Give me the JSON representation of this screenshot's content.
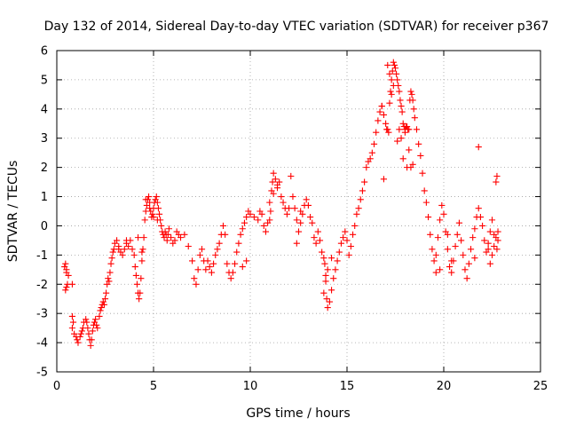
{
  "chart_data": {
    "type": "scatter",
    "title": "Day 132 of 2014, Sidereal Day-to-day VTEC variation (SDTVAR) for receiver p367",
    "xlabel": "GPS time / hours",
    "ylabel": "SDTVAR / TECUs",
    "xlim": [
      0,
      25
    ],
    "ylim": [
      -5,
      6
    ],
    "xticks": [
      0,
      5,
      10,
      15,
      20,
      25
    ],
    "yticks": [
      -5,
      -4,
      -3,
      -2,
      -1,
      0,
      1,
      2,
      3,
      4,
      5,
      6
    ],
    "grid": true,
    "marker": "+",
    "color": "#ff0000",
    "series": [
      {
        "name": "SDTVAR",
        "x": [
          0.4,
          0.45,
          0.5,
          0.5,
          0.55,
          0.45,
          0.5,
          0.6,
          0.8,
          0.8,
          0.85,
          0.8,
          0.9,
          1.0,
          1.05,
          1.1,
          1.2,
          1.25,
          1.3,
          1.35,
          1.4,
          1.5,
          1.55,
          1.6,
          1.65,
          1.7,
          1.75,
          1.8,
          1.85,
          1.9,
          1.95,
          2.0,
          2.05,
          2.1,
          2.2,
          2.25,
          2.3,
          2.35,
          2.4,
          2.45,
          2.5,
          2.55,
          2.6,
          2.65,
          2.7,
          2.75,
          2.8,
          2.85,
          2.9,
          2.95,
          3.0,
          3.1,
          3.2,
          3.3,
          3.4,
          3.5,
          3.6,
          3.7,
          3.8,
          3.9,
          4.0,
          4.05,
          4.1,
          4.15,
          4.2,
          4.25,
          4.3,
          4.35,
          4.4,
          4.45,
          4.5,
          4.55,
          4.6,
          4.65,
          4.7,
          4.75,
          4.8,
          4.85,
          4.9,
          4.95,
          5.0,
          5.05,
          5.1,
          5.15,
          5.2,
          5.25,
          5.3,
          5.35,
          5.4,
          5.45,
          5.5,
          5.55,
          5.6,
          5.65,
          5.7,
          5.75,
          5.8,
          5.9,
          6.0,
          6.1,
          6.2,
          6.3,
          6.4,
          6.6,
          6.8,
          7.0,
          7.1,
          7.2,
          7.3,
          7.4,
          7.5,
          7.6,
          7.7,
          7.8,
          7.9,
          8.0,
          8.1,
          8.2,
          8.3,
          8.4,
          8.5,
          8.6,
          8.7,
          8.8,
          8.9,
          9.0,
          9.1,
          9.2,
          9.3,
          9.4,
          9.5,
          9.6,
          9.7,
          9.8,
          9.9,
          10.0,
          10.2,
          10.4,
          10.5,
          10.6,
          10.7,
          10.8,
          10.9,
          11.0,
          11.05,
          11.1,
          11.15,
          11.2,
          11.3,
          11.4,
          11.5,
          11.6,
          11.7,
          11.8,
          11.9,
          12.0,
          12.1,
          12.2,
          12.3,
          12.4,
          12.5,
          12.6,
          12.7,
          12.8,
          12.9,
          13.0,
          13.1,
          13.2,
          13.3,
          13.4,
          13.5,
          13.6,
          13.7,
          13.8,
          13.85,
          13.9,
          13.95,
          14.0,
          14.1,
          14.2,
          14.3,
          14.4,
          14.5,
          14.6,
          14.7,
          14.8,
          14.9,
          15.0,
          15.1,
          15.2,
          15.3,
          15.4,
          15.5,
          15.6,
          15.7,
          15.8,
          15.9,
          16.0,
          16.1,
          16.2,
          16.3,
          16.4,
          16.5,
          16.6,
          16.7,
          16.8,
          16.9,
          17.0,
          17.05,
          17.1,
          17.15,
          17.2,
          17.25,
          17.3,
          17.35,
          17.4,
          17.45,
          17.5,
          17.55,
          17.6,
          17.65,
          17.7,
          17.75,
          17.8,
          17.85,
          17.9,
          17.95,
          18.0,
          18.05,
          18.1,
          18.15,
          18.2,
          18.25,
          18.3,
          18.35,
          18.4,
          18.45,
          18.5,
          18.6,
          18.7,
          18.8,
          18.9,
          19.0,
          19.1,
          19.2,
          19.3,
          19.4,
          19.5,
          19.6,
          19.7,
          19.8,
          19.9,
          20.0,
          20.1,
          20.2,
          20.3,
          20.4,
          20.5,
          20.6,
          20.7,
          20.8,
          20.9,
          21.0,
          21.1,
          21.2,
          21.3,
          21.4,
          21.5,
          21.6,
          21.7,
          21.8,
          21.9,
          22.0,
          22.1,
          22.2,
          22.3,
          22.4,
          22.5,
          22.6,
          22.7,
          22.75,
          22.75,
          22.8,
          22.8,
          22.7,
          22.6,
          22.5,
          22.4,
          22.3,
          20.2,
          20.4,
          19.8,
          19.6,
          21.6,
          21.8,
          17.6,
          17.7,
          17.8,
          17.9,
          18.1,
          18.3,
          16.9,
          16.8,
          17.3,
          17.4,
          17.2,
          17.1,
          18.0,
          18.2,
          18.4,
          14.0,
          13.9,
          13.8,
          14.2,
          12.6,
          12.4,
          11.0,
          11.2,
          11.4,
          9.6,
          9.8,
          4.6,
          4.8,
          5.0,
          5.2,
          4.2,
          4.4,
          3.2,
          3.6
        ],
        "y": [
          -1.4,
          -1.3,
          -1.5,
          -2.1,
          -2.0,
          -2.2,
          -1.6,
          -1.7,
          -2.0,
          -3.1,
          -3.3,
          -3.5,
          -3.7,
          -3.8,
          -3.9,
          -4.0,
          -3.8,
          -3.7,
          -3.6,
          -3.5,
          -3.3,
          -3.2,
          -3.3,
          -3.5,
          -3.7,
          -3.9,
          -4.1,
          -3.9,
          -3.6,
          -3.4,
          -3.3,
          -3.2,
          -3.4,
          -3.5,
          -3.1,
          -2.9,
          -2.8,
          -2.7,
          -2.6,
          -2.7,
          -2.5,
          -2.3,
          -2.0,
          -1.8,
          -1.9,
          -1.6,
          -1.3,
          -1.1,
          -0.9,
          -0.8,
          -0.6,
          -0.5,
          -0.7,
          -0.9,
          -1.0,
          -0.8,
          -0.6,
          -0.7,
          -0.5,
          -0.8,
          -1.0,
          -1.4,
          -1.7,
          -2.0,
          -2.3,
          -2.5,
          -2.3,
          -1.8,
          -1.2,
          -0.8,
          -0.4,
          0.2,
          0.5,
          0.7,
          0.9,
          1.0,
          0.8,
          0.5,
          0.3,
          0.4,
          0.6,
          0.8,
          0.9,
          1.0,
          0.8,
          0.6,
          0.4,
          0.2,
          0.0,
          -0.2,
          -0.3,
          -0.4,
          -0.2,
          -0.3,
          -0.5,
          -0.3,
          -0.1,
          -0.4,
          -0.6,
          -0.5,
          -0.2,
          -0.3,
          -0.4,
          -0.3,
          -0.7,
          -1.2,
          -1.8,
          -2.0,
          -1.5,
          -1.0,
          -0.8,
          -1.2,
          -1.5,
          -1.2,
          -1.4,
          -1.6,
          -1.3,
          -1.0,
          -0.8,
          -0.6,
          -0.3,
          0.0,
          -0.3,
          -1.3,
          -1.6,
          -1.8,
          -1.6,
          -1.3,
          -0.9,
          -0.6,
          -0.3,
          -0.1,
          0.1,
          0.3,
          0.5,
          0.4,
          0.3,
          0.2,
          0.5,
          0.4,
          0.0,
          -0.2,
          0.1,
          0.2,
          0.5,
          1.2,
          1.5,
          1.8,
          1.6,
          1.3,
          1.5,
          1.0,
          0.8,
          0.6,
          0.4,
          0.6,
          1.7,
          1.0,
          0.6,
          0.2,
          -0.2,
          0.1,
          0.4,
          0.7,
          0.9,
          0.7,
          0.3,
          0.1,
          -0.4,
          -0.6,
          -0.2,
          -0.5,
          -0.9,
          -1.1,
          -1.3,
          -1.7,
          -2.5,
          -2.8,
          -2.6,
          -2.2,
          -1.8,
          -1.5,
          -1.2,
          -0.9,
          -0.6,
          -0.4,
          -0.2,
          -0.5,
          -1.0,
          -0.7,
          -0.3,
          0.0,
          0.4,
          0.6,
          0.9,
          1.2,
          1.5,
          2.0,
          2.2,
          2.3,
          2.5,
          2.8,
          3.2,
          3.6,
          3.9,
          4.1,
          3.8,
          3.5,
          3.3,
          3.3,
          3.2,
          4.2,
          4.6,
          5.0,
          5.3,
          5.6,
          5.5,
          5.4,
          5.2,
          5.0,
          4.8,
          4.6,
          4.3,
          4.1,
          3.9,
          3.5,
          3.4,
          3.3,
          3.4,
          3.4,
          3.3,
          3.3,
          4.3,
          4.6,
          4.5,
          4.3,
          4.0,
          3.7,
          3.3,
          2.8,
          2.4,
          1.8,
          1.2,
          0.8,
          0.3,
          -0.3,
          -0.8,
          -1.2,
          -1.0,
          -0.4,
          0.2,
          0.7,
          0.4,
          -0.2,
          -0.8,
          -1.4,
          -1.6,
          -1.2,
          -0.7,
          -0.3,
          0.1,
          -0.5,
          -1.0,
          -1.5,
          -1.8,
          -1.3,
          -0.8,
          -0.4,
          -0.1,
          0.3,
          0.6,
          0.3,
          0.0,
          -0.5,
          -0.9,
          -0.6,
          -0.2,
          0.2,
          -0.3,
          1.5,
          1.7,
          -0.8,
          -0.5,
          -0.2,
          -0.4,
          -0.7,
          -1.0,
          -1.3,
          -0.8,
          -0.3,
          -1.2,
          -1.5,
          -1.6,
          -1.1,
          2.7,
          2.9,
          3.3,
          3.0,
          2.3,
          2.0,
          2.0,
          1.6,
          4.1,
          4.5,
          4.8,
          5.2,
          5.5,
          3.2,
          2.6,
          2.1,
          -1.5,
          -1.9,
          -2.3,
          -1.1,
          0.5,
          -0.6,
          0.8,
          1.1,
          1.4,
          -1.4,
          -1.2,
          0.9,
          0.6,
          0.3,
          0.2,
          -0.4,
          -0.9,
          -0.8,
          -0.5
        ]
      }
    ]
  }
}
